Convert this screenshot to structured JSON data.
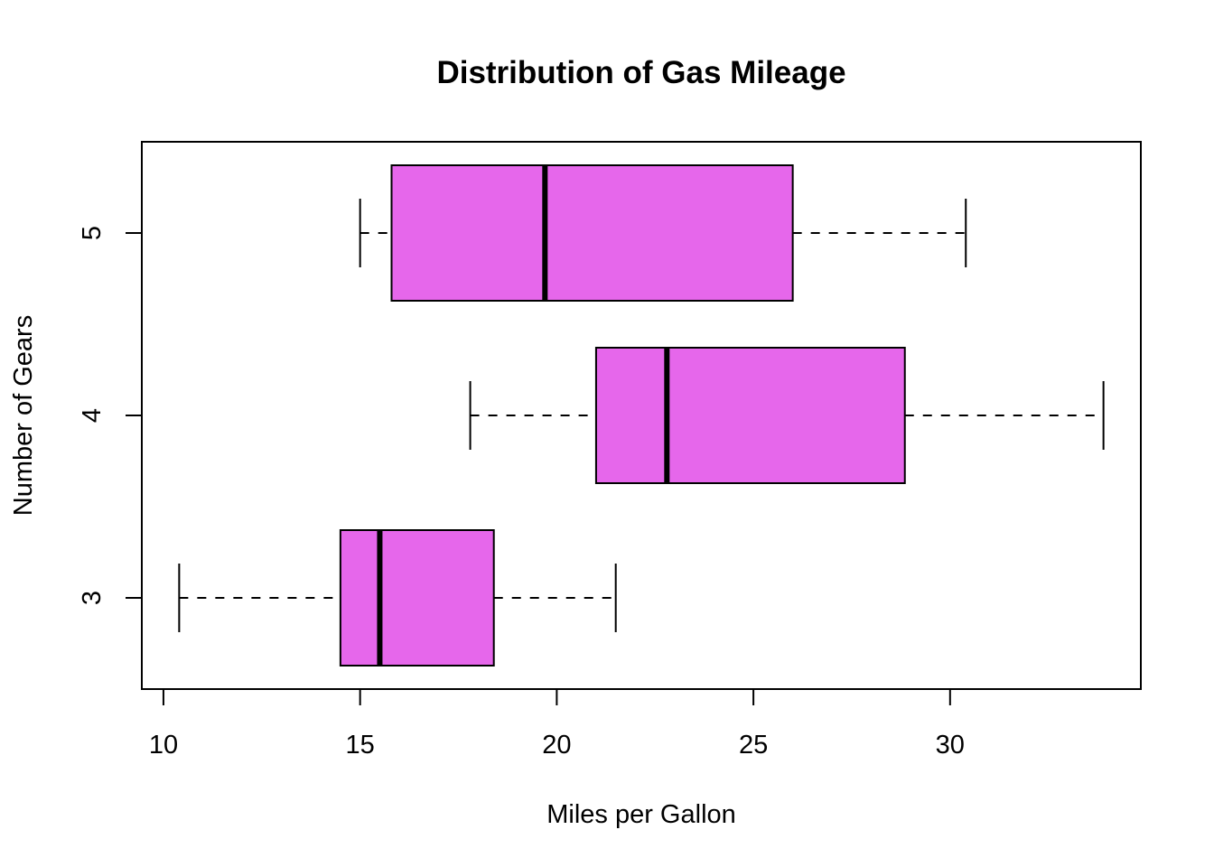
{
  "chart_data": {
    "type": "boxplot",
    "orientation": "horizontal",
    "title": "Distribution of Gas Mileage",
    "xlabel": "Miles per Gallon",
    "ylabel": "Number of Gears",
    "xlim": [
      9.45,
      34.85
    ],
    "ylim": [
      0.5,
      3.5
    ],
    "x_ticks": [
      10,
      15,
      20,
      25,
      30
    ],
    "x_tick_labels": [
      "10",
      "15",
      "20",
      "25",
      "30"
    ],
    "categories": [
      "3",
      "4",
      "5"
    ],
    "series": [
      {
        "category": "3",
        "whisker_low": 10.4,
        "q1": 14.5,
        "median": 15.5,
        "q3": 18.4,
        "whisker_high": 21.5
      },
      {
        "category": "4",
        "whisker_low": 17.8,
        "q1": 21.0,
        "median": 22.8,
        "q3": 28.85,
        "whisker_high": 33.9
      },
      {
        "category": "5",
        "whisker_low": 15.0,
        "q1": 15.8,
        "median": 19.7,
        "q3": 26.0,
        "whisker_high": 30.4
      }
    ],
    "box_color": "#E667EB",
    "grid": false,
    "legend": "none"
  }
}
